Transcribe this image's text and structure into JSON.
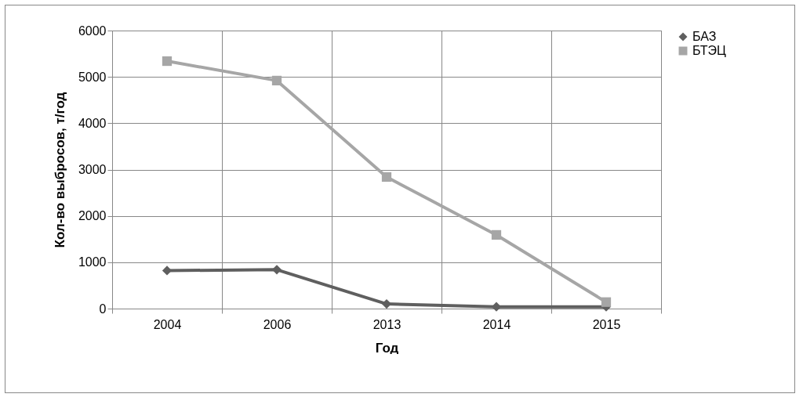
{
  "chart_data": {
    "type": "line",
    "xlabel": "Год",
    "ylabel": "Кол-во выбросов, т/год",
    "categories": [
      "2004",
      "2006",
      "2013",
      "2014",
      "2015"
    ],
    "series": [
      {
        "name": "БАЗ",
        "color": "#5f5f5f",
        "marker": "diamond",
        "values": [
          820,
          840,
          100,
          40,
          40
        ]
      },
      {
        "name": "БТЭЦ",
        "color": "#a6a6a6",
        "marker": "square",
        "values": [
          5340,
          4920,
          2840,
          1590,
          140
        ]
      }
    ],
    "ylim": [
      0,
      6000
    ],
    "yticks": [
      0,
      1000,
      2000,
      3000,
      4000,
      5000,
      6000
    ],
    "grid": true,
    "legend": "right"
  }
}
